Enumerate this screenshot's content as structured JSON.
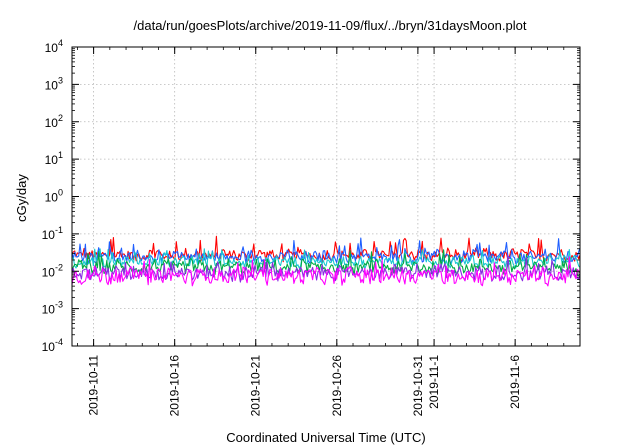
{
  "chart_data": {
    "type": "line",
    "title": "/data/run/goesPlots/archive/2019-11-09/flux/../bryn/31daysMoon.plot",
    "xlabel": "Coordinated Universal Time (UTC)",
    "ylabel": "cGy/day",
    "y_scale": "log",
    "ylim": [
      0.0001,
      10000
    ],
    "y_ticks": [
      {
        "base": "10",
        "exp": "-4"
      },
      {
        "base": "10",
        "exp": "-3"
      },
      {
        "base": "10",
        "exp": "-2"
      },
      {
        "base": "10",
        "exp": "-1"
      },
      {
        "base": "10",
        "exp": "0"
      },
      {
        "base": "10",
        "exp": "1"
      },
      {
        "base": "10",
        "exp": "2"
      },
      {
        "base": "10",
        "exp": "3"
      },
      {
        "base": "10",
        "exp": "4"
      }
    ],
    "xlim": [
      "2019-10-09T16:00",
      "2019-11-10T00:00"
    ],
    "x_ticks": [
      {
        "date": "2019-10-11",
        "label": "2019-10-11"
      },
      {
        "date": "2019-10-16",
        "label": "2019-10-16"
      },
      {
        "date": "2019-10-21",
        "label": "2019-10-21"
      },
      {
        "date": "2019-10-26",
        "label": "2019-10-26"
      },
      {
        "date": "2019-10-31",
        "label": "2019-10-31"
      },
      {
        "date": "2019-11-01",
        "label": "2019-11-1"
      },
      {
        "date": "2019-11-06",
        "label": "2019-11-6"
      }
    ],
    "grid": true,
    "series": [
      {
        "color": "#ff0000",
        "base": 0.027,
        "spread": 0.3,
        "spike": 2.4
      },
      {
        "color": "#1f5fff",
        "base": 0.024,
        "spread": 0.3,
        "spike": 2.2
      },
      {
        "color": "#18c8d0",
        "base": 0.018,
        "spread": 0.28,
        "spike": 1.8
      },
      {
        "color": "#00aa44",
        "base": 0.013,
        "spread": 0.35,
        "spike": 1.8
      },
      {
        "color": "#8a2be2",
        "base": 0.009,
        "spread": 0.4,
        "spike": 1.8
      },
      {
        "color": "#ff00ff",
        "base": 0.0075,
        "spread": 0.45,
        "spike": 1.9
      }
    ]
  }
}
